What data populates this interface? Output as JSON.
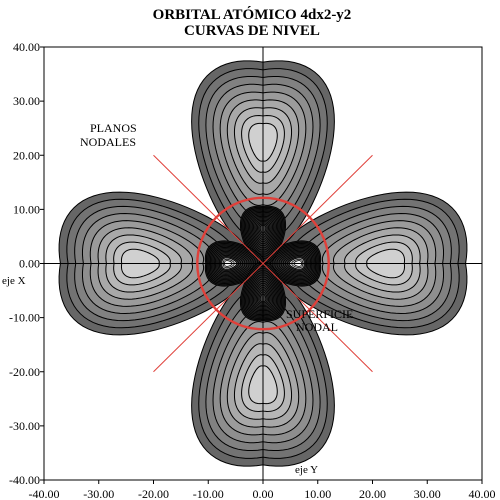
{
  "chart_data": {
    "type": "contour",
    "title": "ORBITAL ATÓMICO 4dx2-y2",
    "subtitle": "CURVAS DE NIVEL",
    "x_axis_label": "eje X",
    "y_axis_label": "eje Y",
    "xlim": [
      -40,
      40
    ],
    "ylim": [
      -40,
      40
    ],
    "x_ticks": [
      "-40.00",
      "-30.00",
      "-20.00",
      "-10.00",
      "0.00",
      "10.00",
      "20.00",
      "30.00",
      "40.00"
    ],
    "y_ticks": [
      "40.00",
      "30.00",
      "20.00",
      "10.00",
      "0.00",
      "-10.00",
      "-20.00",
      "-30.00",
      "-40.00"
    ],
    "annotations": {
      "nodal_planes_line1": "PLANOS",
      "nodal_planes_line2": "NODALES",
      "nodal_surface_line1": "SUPERFICIE",
      "nodal_surface_line2": "NODAL"
    },
    "nodal_surface_radius": 12,
    "nodal_planes": [
      "y = x",
      "y = -x"
    ],
    "colors": {
      "nodal_lines": "#e0403a",
      "contour_line": "#000000",
      "outer_fill": "#666666",
      "inner_fill": "#1e1e1e"
    }
  }
}
